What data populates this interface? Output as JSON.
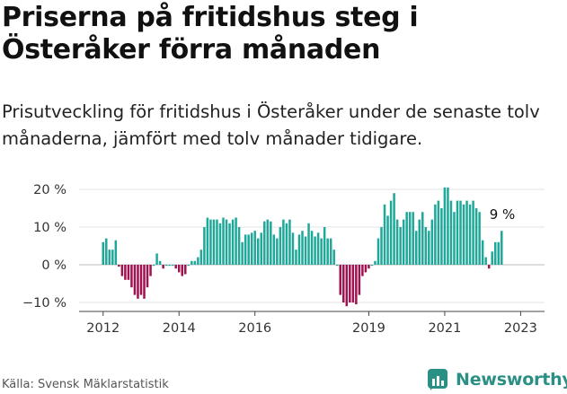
{
  "title": "Priserna på fritidshus steg i Österåker förra månaden",
  "subtitle": "Prisutveckling för fritidshus i Österåker under de senaste tolv månaderna, jämfört med tolv månader tidigare.",
  "source": "Källa: Svensk Mäklarstatistik",
  "brand": "Newsworthy",
  "colors": {
    "positive": "#1fa89a",
    "negative": "#a0124f",
    "brand": "#2a8f84"
  },
  "chart_data": {
    "type": "bar",
    "ylim": [
      -12,
      22
    ],
    "y_ticks": [
      20,
      10,
      0,
      -10
    ],
    "y_tick_labels": [
      "20 %",
      "10 %",
      "0 %",
      "−10 %"
    ],
    "x_tick_labels": [
      "2012",
      "2014",
      "2016",
      "2019",
      "2021",
      "2023"
    ],
    "x_tick_dates": [
      2012.0,
      2014.0,
      2016.0,
      2019.0,
      2021.0,
      2023.0
    ],
    "grid": true,
    "annotation": "9 %",
    "start_date": [
      2012,
      1
    ],
    "values": [
      6,
      7,
      4,
      4,
      6.5,
      -0.5,
      -3,
      -4,
      -4,
      -6,
      -8,
      -9,
      -8,
      -9,
      -6,
      -3,
      0,
      3,
      1,
      -1,
      0,
      0,
      0,
      -1,
      -2,
      -3,
      -2.5,
      0,
      1,
      1,
      2,
      4,
      10,
      12.5,
      12,
      12,
      12,
      11,
      12.5,
      12,
      11,
      12,
      12.5,
      10,
      6,
      8,
      8,
      8.5,
      9,
      7,
      8.5,
      11.5,
      12,
      11.5,
      8,
      7,
      10,
      12,
      11,
      12,
      8.5,
      4,
      8,
      9,
      7.5,
      11,
      9,
      7.5,
      8.5,
      7,
      10,
      7,
      7,
      4,
      0,
      -8,
      -10,
      -11,
      -10,
      -10,
      -10.5,
      -8,
      -3,
      -2,
      -1,
      0,
      1,
      7,
      10,
      16,
      13,
      17,
      19,
      12,
      10,
      12,
      14,
      14,
      14,
      9,
      12,
      14,
      10,
      9,
      12,
      16,
      17,
      15,
      20.5,
      20.5,
      17,
      14,
      17,
      17,
      16,
      17,
      16,
      17,
      15,
      14,
      6.5,
      2,
      -1,
      3.5,
      6,
      6,
      9
    ]
  }
}
